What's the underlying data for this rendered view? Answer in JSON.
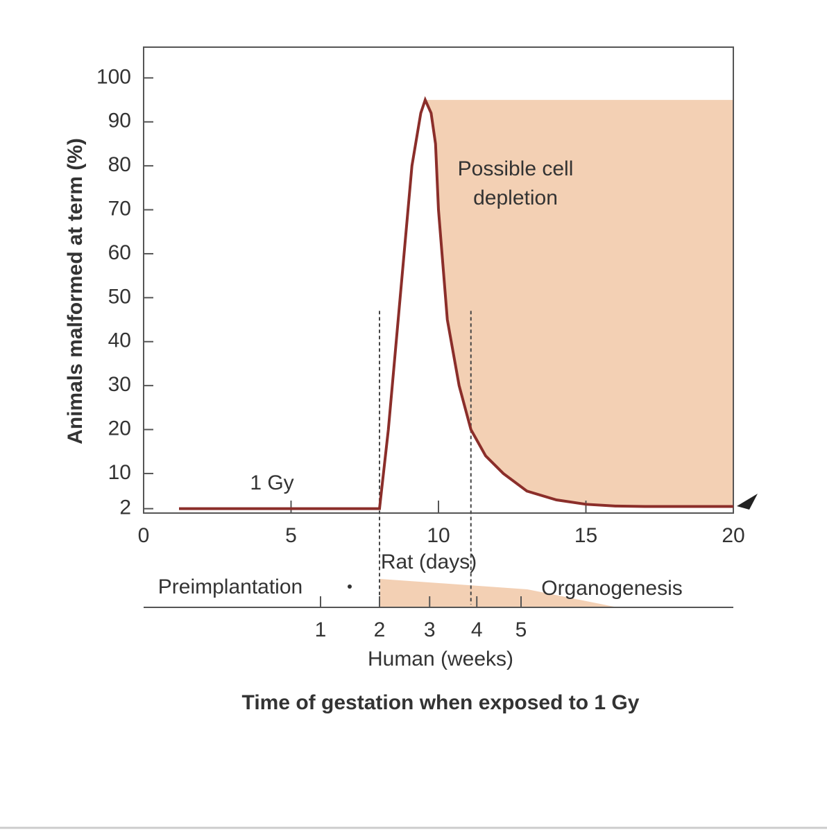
{
  "chart_data": {
    "type": "line",
    "ylabel": "Animals malformed at term (%)",
    "xlabel": "Rat (days)",
    "title": "Time of gestation when exposed to 1 Gy",
    "x": [
      1.2,
      8,
      8.3,
      8.7,
      9.1,
      9.4,
      9.55,
      9.75,
      9.9,
      10,
      10.3,
      10.7,
      11.1,
      11.6,
      12.2,
      13,
      14,
      15,
      16,
      17,
      20
    ],
    "series": [
      {
        "name": "1 Gy",
        "color": "#8b2e2a",
        "values": [
          2,
          2,
          20,
          50,
          80,
          92,
          95,
          92,
          85,
          70,
          45,
          30,
          20,
          14,
          10,
          6,
          4,
          3,
          2.6,
          2.5,
          2.5
        ]
      }
    ],
    "shade": {
      "label": "Possible cell depletion",
      "from": 9.55,
      "to": 20,
      "top": 95,
      "color": "#f3d0b4"
    },
    "markers": {
      "x": [
        8,
        11.1
      ],
      "top": 47
    },
    "xlim": [
      0,
      20
    ],
    "xticks": [
      0,
      5,
      10,
      15,
      20
    ],
    "ylim": [
      1,
      107
    ],
    "yticks": [
      2,
      10,
      20,
      30,
      40,
      50,
      60,
      70,
      80,
      90,
      100
    ],
    "human_axis": {
      "label": "Human (weeks)",
      "ticks": [
        1,
        2,
        3,
        4,
        5
      ],
      "at_rat_days": [
        6,
        8,
        9.7,
        11.3,
        12.8
      ]
    },
    "stages": [
      "Preimplantation",
      "Organogenesis"
    ]
  }
}
